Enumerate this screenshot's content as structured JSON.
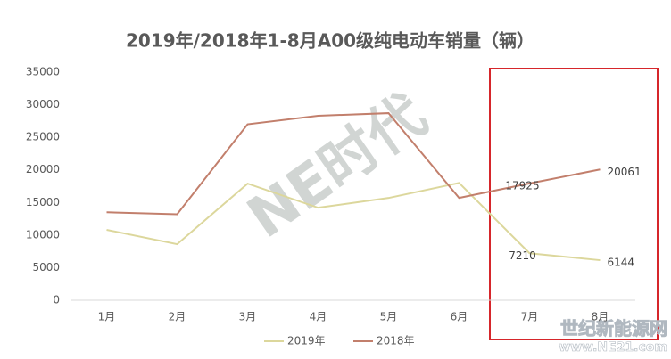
{
  "chart_data": {
    "type": "line",
    "title": "2019年/2018年1-8月A00级纯电动车销量（辆）",
    "categories": [
      "1月",
      "2月",
      "3月",
      "4月",
      "5月",
      "6月",
      "7月",
      "8月"
    ],
    "series": [
      {
        "name": "2019年",
        "color": "#dcd79c",
        "values": [
          10800,
          8600,
          17900,
          14200,
          15700,
          18000,
          7210,
          6144
        ],
        "value_labels": [
          null,
          null,
          null,
          null,
          null,
          null,
          "7210",
          "6144"
        ]
      },
      {
        "name": "2018年",
        "color": "#c27f6c",
        "values": [
          13500,
          13200,
          27000,
          28300,
          28700,
          15700,
          17925,
          20061
        ],
        "value_labels": [
          null,
          null,
          null,
          null,
          null,
          null,
          "17925",
          "20061"
        ]
      }
    ],
    "ylim": [
      0,
      35000
    ],
    "yticks": [
      0,
      5000,
      10000,
      15000,
      20000,
      25000,
      30000,
      35000
    ],
    "grid": false,
    "legend": "bottom"
  },
  "watermarks": [
    "NE时代",
    "世纪新能源网",
    "www.NE21.com"
  ]
}
